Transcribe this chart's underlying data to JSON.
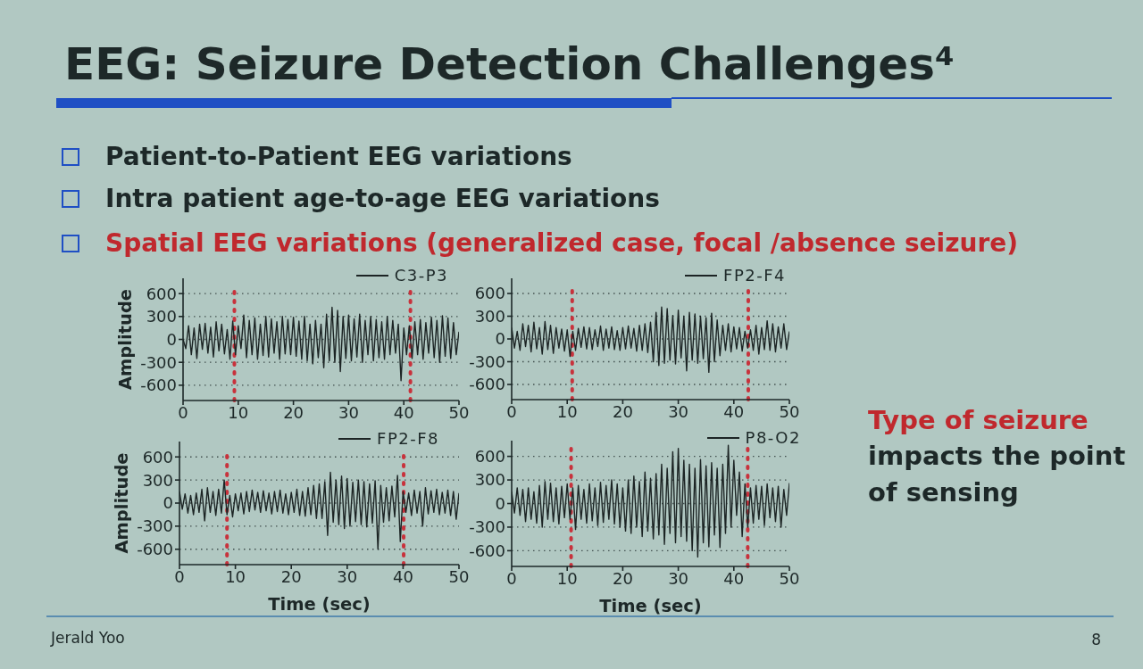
{
  "chart_data": [
    {
      "type": "line",
      "title": "EEG: Seizure Detection Challenges⁴",
      "annotations": [
        "Patient-to-Patient EEG variations",
        "Intra patient age-to-age EEG variations",
        "Spatial EEG variations (generalized case, focal /absence seizure)",
        "Type of seizure",
        "impacts the point of sensing",
        "Jerald Yoo",
        "8"
      ],
      "ylabel": "Amplitude",
      "x": [
        0,
        0.5,
        1,
        1.5,
        2,
        2.5,
        3,
        3.5,
        4,
        4.5,
        5,
        5.5,
        6,
        6.5,
        7,
        7.5,
        8,
        8.5,
        9,
        9.5,
        10,
        10.5,
        11,
        11.5,
        12,
        12.5,
        13,
        13.5,
        14,
        14.5,
        15,
        15.5,
        16,
        16.5,
        17,
        17.5,
        18,
        18.5,
        19,
        19.5,
        20,
        20.5,
        21,
        21.5,
        22,
        22.5,
        23,
        23.5,
        24,
        24.5,
        25,
        25.5,
        26,
        26.5,
        27,
        27.5,
        28,
        28.5,
        29,
        29.5,
        30,
        30.5,
        31,
        31.5,
        32,
        32.5,
        33,
        33.5,
        34,
        34.5,
        35,
        35.5,
        36,
        36.5,
        37,
        37.5,
        38,
        38.5,
        39,
        39.5,
        40,
        40.5,
        41,
        41.5,
        42,
        42.5,
        43,
        43.5,
        44,
        44.5,
        45,
        45.5,
        46,
        46.5,
        47,
        47.5,
        48,
        48.5,
        49,
        49.5,
        50
      ],
      "series": [
        {
          "name": "C3-P3",
          "color": "#1c2424",
          "values": [
            0,
            -120,
            180,
            -200,
            150,
            -250,
            200,
            -130,
            210,
            -180,
            160,
            -230,
            230,
            -150,
            200,
            -190,
            130,
            -260,
            240,
            -200,
            180,
            -120,
            320,
            -240,
            250,
            -200,
            280,
            -260,
            200,
            -210,
            300,
            -230,
            270,
            -180,
            230,
            -260,
            300,
            -190,
            260,
            -200,
            290,
            -220,
            240,
            -260,
            300,
            -280,
            200,
            -320,
            250,
            -240,
            200,
            -370,
            330,
            -280,
            420,
            -300,
            380,
            -420,
            300,
            -250,
            320,
            -280,
            270,
            -230,
            330,
            -300,
            250,
            -200,
            300,
            -280,
            260,
            -240,
            230,
            -260,
            300,
            -200,
            250,
            -180,
            200,
            -540,
            150,
            -200,
            180,
            -250,
            230,
            -200,
            260,
            -260,
            220,
            -180,
            290,
            -240,
            250,
            -300,
            310,
            -220,
            280,
            -250,
            220,
            -200,
            100
          ]
        }
      ],
      "xlim": [
        0,
        50
      ],
      "xticks": [
        0,
        10,
        20,
        30,
        40,
        50
      ],
      "ylim": [
        -800,
        800
      ],
      "yticks": [
        -600,
        -300,
        0,
        300,
        600
      ],
      "grid": "y",
      "legend": "top right",
      "ref_lines": [
        {
          "axis": "x",
          "value": 9.3,
          "color": "#c8323c",
          "line_style": "dashed"
        },
        {
          "axis": "x",
          "value": 41.2,
          "color": "#c8323c",
          "line_style": "dashed"
        }
      ]
    },
    {
      "type": "line",
      "x": [
        0,
        0.5,
        1,
        1.5,
        2,
        2.5,
        3,
        3.5,
        4,
        4.5,
        5,
        5.5,
        6,
        6.5,
        7,
        7.5,
        8,
        8.5,
        9,
        9.5,
        10,
        10.5,
        11,
        11.5,
        12,
        12.5,
        13,
        13.5,
        14,
        14.5,
        15,
        15.5,
        16,
        16.5,
        17,
        17.5,
        18,
        18.5,
        19,
        19.5,
        20,
        20.5,
        21,
        21.5,
        22,
        22.5,
        23,
        23.5,
        24,
        24.5,
        25,
        25.5,
        26,
        26.5,
        27,
        27.5,
        28,
        28.5,
        29,
        29.5,
        30,
        30.5,
        31,
        31.5,
        32,
        32.5,
        33,
        33.5,
        34,
        34.5,
        35,
        35.5,
        36,
        36.5,
        37,
        37.5,
        38,
        38.5,
        39,
        39.5,
        40,
        40.5,
        41,
        41.5,
        42,
        42.5,
        43,
        43.5,
        44,
        44.5,
        45,
        45.5,
        46,
        46.5,
        47,
        47.5,
        48,
        48.5,
        49,
        49.5,
        50
      ],
      "series": [
        {
          "name": "FP2-F4",
          "color": "#1c2424",
          "values": [
            150,
            -120,
            100,
            -150,
            200,
            -100,
            180,
            -170,
            220,
            -130,
            150,
            -200,
            230,
            -140,
            180,
            -190,
            150,
            -120,
            130,
            -160,
            120,
            -230,
            100,
            -150,
            140,
            -110,
            160,
            -130,
            150,
            -140,
            120,
            -100,
            170,
            -150,
            130,
            -120,
            160,
            -140,
            110,
            -150,
            150,
            -130,
            170,
            -120,
            140,
            -160,
            180,
            -150,
            200,
            -180,
            220,
            -300,
            350,
            -350,
            420,
            -320,
            400,
            -280,
            310,
            -330,
            380,
            -250,
            300,
            -420,
            350,
            -280,
            330,
            -320,
            300,
            -260,
            280,
            -440,
            340,
            -300,
            250,
            -220,
            180,
            -150,
            200,
            -170,
            160,
            -130,
            150,
            -160,
            100,
            -120,
            120,
            -150,
            180,
            -200,
            150,
            -140,
            240,
            -150,
            200,
            -170,
            160,
            -120,
            200,
            -140,
            100
          ]
        }
      ],
      "xlim": [
        0,
        50
      ],
      "xticks": [
        0,
        10,
        20,
        30,
        40,
        50
      ],
      "ylim": [
        -800,
        800
      ],
      "yticks": [
        -600,
        -300,
        0,
        300,
        600
      ],
      "grid": "y",
      "legend": "top right",
      "ref_lines": [
        {
          "axis": "x",
          "value": 10.9,
          "color": "#c8323c",
          "line_style": "dashed"
        },
        {
          "axis": "x",
          "value": 42.6,
          "color": "#c8323c",
          "line_style": "dashed"
        }
      ]
    },
    {
      "type": "line",
      "ylabel": "Amplitude",
      "xlabel": "Time (sec)",
      "x": [
        0,
        0.5,
        1,
        1.5,
        2,
        2.5,
        3,
        3.5,
        4,
        4.5,
        5,
        5.5,
        6,
        6.5,
        7,
        7.5,
        8,
        8.5,
        9,
        9.5,
        10,
        10.5,
        11,
        11.5,
        12,
        12.5,
        13,
        13.5,
        14,
        14.5,
        15,
        15.5,
        16,
        16.5,
        17,
        17.5,
        18,
        18.5,
        19,
        19.5,
        20,
        20.5,
        21,
        21.5,
        22,
        22.5,
        23,
        23.5,
        24,
        24.5,
        25,
        25.5,
        26,
        26.5,
        27,
        27.5,
        28,
        28.5,
        29,
        29.5,
        30,
        30.5,
        31,
        31.5,
        32,
        32.5,
        33,
        33.5,
        34,
        34.5,
        35,
        35.5,
        36,
        36.5,
        37,
        37.5,
        38,
        38.5,
        39,
        39.5,
        40,
        40.5,
        41,
        41.5,
        42,
        42.5,
        43,
        43.5,
        44,
        44.5,
        45,
        45.5,
        46,
        46.5,
        47,
        47.5,
        48,
        48.5,
        49,
        49.5,
        50
      ],
      "series": [
        {
          "name": "FP2-F8",
          "color": "#1c2424",
          "values": [
            150,
            -80,
            120,
            -130,
            100,
            -150,
            130,
            -120,
            180,
            -230,
            200,
            -120,
            150,
            -160,
            180,
            -130,
            300,
            -150,
            100,
            -180,
            120,
            -100,
            130,
            -140,
            150,
            -110,
            170,
            -90,
            140,
            -120,
            160,
            -100,
            130,
            -140,
            150,
            -110,
            170,
            -130,
            120,
            -150,
            140,
            -120,
            180,
            -160,
            150,
            -170,
            200,
            -150,
            230,
            -200,
            250,
            -200,
            280,
            -420,
            400,
            -250,
            300,
            -280,
            350,
            -330,
            320,
            -300,
            270,
            -240,
            300,
            -280,
            280,
            -310,
            250,
            -260,
            290,
            -600,
            230,
            -250,
            200,
            -230,
            220,
            -180,
            360,
            -500,
            150,
            -120,
            130,
            -160,
            170,
            -130,
            150,
            -300,
            200,
            -140,
            160,
            -120,
            180,
            -150,
            140,
            -130,
            170,
            -160,
            150,
            -210,
            130
          ]
        }
      ],
      "xlim": [
        0,
        50
      ],
      "xticks": [
        0,
        10,
        20,
        30,
        40,
        50
      ],
      "ylim": [
        -800,
        800
      ],
      "yticks": [
        -600,
        -300,
        0,
        300,
        600
      ],
      "grid": "y",
      "legend": "top right",
      "ref_lines": [
        {
          "axis": "x",
          "value": 8.5,
          "color": "#c8323c",
          "line_style": "dashed"
        },
        {
          "axis": "x",
          "value": 40.1,
          "color": "#c8323c",
          "line_style": "dashed"
        }
      ]
    },
    {
      "type": "line",
      "xlabel": "Time (sec)",
      "x": [
        0,
        0.5,
        1,
        1.5,
        2,
        2.5,
        3,
        3.5,
        4,
        4.5,
        5,
        5.5,
        6,
        6.5,
        7,
        7.5,
        8,
        8.5,
        9,
        9.5,
        10,
        10.5,
        11,
        11.5,
        12,
        12.5,
        13,
        13.5,
        14,
        14.5,
        15,
        15.5,
        16,
        16.5,
        17,
        17.5,
        18,
        18.5,
        19,
        19.5,
        20,
        20.5,
        21,
        21.5,
        22,
        22.5,
        23,
        23.5,
        24,
        24.5,
        25,
        25.5,
        26,
        26.5,
        27,
        27.5,
        28,
        28.5,
        29,
        29.5,
        30,
        30.5,
        31,
        31.5,
        32,
        32.5,
        33,
        33.5,
        34,
        34.5,
        35,
        35.5,
        36,
        36.5,
        37,
        37.5,
        38,
        38.5,
        39,
        39.5,
        40,
        40.5,
        41,
        41.5,
        42,
        42.5,
        43,
        43.5,
        44,
        44.5,
        45,
        45.5,
        46,
        46.5,
        47,
        47.5,
        48,
        48.5,
        49,
        49.5,
        50
      ],
      "series": [
        {
          "name": "P8-O2",
          "color": "#1c2424",
          "values": [
            150,
            -120,
            200,
            -150,
            180,
            -230,
            200,
            -200,
            150,
            -250,
            230,
            -300,
            280,
            -200,
            260,
            -230,
            200,
            -260,
            220,
            -180,
            250,
            -200,
            200,
            -330,
            230,
            -200,
            180,
            -250,
            250,
            -220,
            200,
            -280,
            270,
            -240,
            230,
            -200,
            300,
            -260,
            250,
            -300,
            200,
            -350,
            300,
            -380,
            350,
            -300,
            280,
            -420,
            400,
            -350,
            320,
            -450,
            380,
            -400,
            500,
            -520,
            450,
            -380,
            660,
            -500,
            700,
            -420,
            550,
            -480,
            500,
            -600,
            450,
            -680,
            560,
            -500,
            480,
            -550,
            520,
            -400,
            450,
            -560,
            500,
            -380,
            740,
            -300,
            550,
            -150,
            400,
            -420,
            250,
            -300,
            200,
            -250,
            230,
            -200,
            220,
            -280,
            250,
            -180,
            200,
            -230,
            220,
            -300,
            180,
            -150,
            260
          ]
        }
      ],
      "xlim": [
        0,
        50
      ],
      "xticks": [
        0,
        10,
        20,
        30,
        40,
        50
      ],
      "ylim": [
        -800,
        800
      ],
      "yticks": [
        -600,
        -300,
        0,
        300,
        600
      ],
      "grid": "y",
      "legend": "top right",
      "ref_lines": [
        {
          "axis": "x",
          "value": 10.7,
          "color": "#c8323c",
          "line_style": "dashed"
        },
        {
          "axis": "x",
          "value": 42.5,
          "color": "#c8323c",
          "line_style": "dashed"
        }
      ]
    }
  ]
}
